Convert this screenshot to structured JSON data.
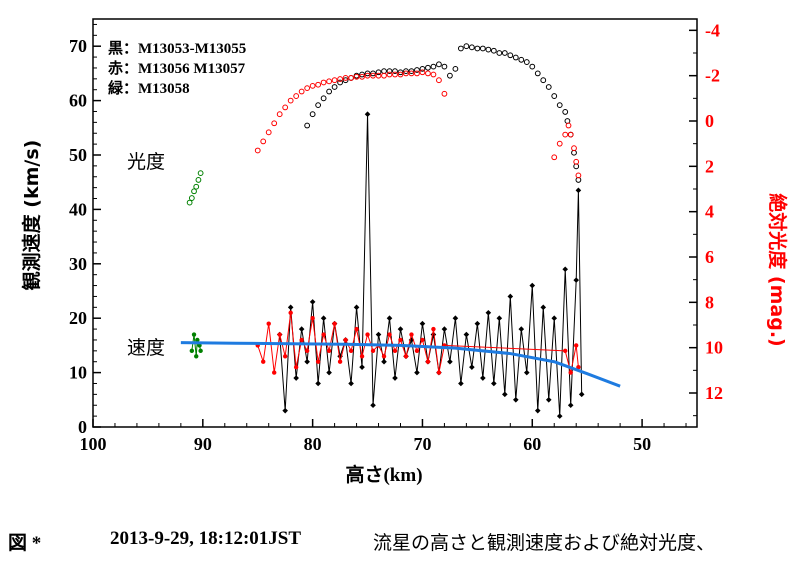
{
  "chart_data": {
    "type": "scatter",
    "xlabel": "高さ(km)",
    "ylabel_left": "観測速度 (km/s)",
    "ylabel_right": "絶対光度 (mag.)",
    "xlim": [
      100,
      45
    ],
    "ylim_left": [
      0,
      75
    ],
    "ylim_right": [
      13.5,
      -4.5
    ],
    "x_ticks": [
      100,
      90,
      80,
      70,
      60,
      50
    ],
    "y_left_ticks": [
      0,
      10,
      20,
      30,
      40,
      50,
      60,
      70
    ],
    "y_right_ticks": [
      -4,
      -2,
      0,
      2,
      4,
      6,
      8,
      10,
      12
    ],
    "legend": [
      {
        "label": "黒：M13053-M13055",
        "color": "#000000"
      },
      {
        "label": "赤：M13056 M13057",
        "color": "#ff0000"
      },
      {
        "label": "緑：M13058",
        "color": "#008000"
      }
    ],
    "annotations": [
      {
        "text": "光度",
        "x": 97,
        "y": 50
      },
      {
        "text": "速度",
        "x": 97,
        "y": 14
      }
    ],
    "series": [
      {
        "name": "光度 黒 (M13053-M13055)",
        "axis": "right",
        "color": "#000000",
        "marker": "open-circle",
        "points": [
          [
            80.5,
            0.2
          ],
          [
            80,
            -0.3
          ],
          [
            79.5,
            -0.7
          ],
          [
            79,
            -1.0
          ],
          [
            78.5,
            -1.3
          ],
          [
            78,
            -1.5
          ],
          [
            77.5,
            -1.7
          ],
          [
            77,
            -1.8
          ],
          [
            76.5,
            -1.9
          ],
          [
            76,
            -2.0
          ],
          [
            75.5,
            -2.05
          ],
          [
            75,
            -2.1
          ],
          [
            74.5,
            -2.1
          ],
          [
            74,
            -2.15
          ],
          [
            73.5,
            -2.2
          ],
          [
            73,
            -2.2
          ],
          [
            72.5,
            -2.2
          ],
          [
            72,
            -2.15
          ],
          [
            71.5,
            -2.2
          ],
          [
            71,
            -2.2
          ],
          [
            70.5,
            -2.25
          ],
          [
            70,
            -2.3
          ],
          [
            69.5,
            -2.35
          ],
          [
            69,
            -2.4
          ],
          [
            68.5,
            -2.5
          ],
          [
            68,
            -2.4
          ],
          [
            67.5,
            -2.0
          ],
          [
            67,
            -2.3
          ],
          [
            66.5,
            -3.2
          ],
          [
            66,
            -3.3
          ],
          [
            65.5,
            -3.25
          ],
          [
            65,
            -3.2
          ],
          [
            64.5,
            -3.2
          ],
          [
            64,
            -3.15
          ],
          [
            63.5,
            -3.1
          ],
          [
            63,
            -3.0
          ],
          [
            62.5,
            -3.0
          ],
          [
            62,
            -2.9
          ],
          [
            61.5,
            -2.8
          ],
          [
            61,
            -2.7
          ],
          [
            60.5,
            -2.6
          ],
          [
            60,
            -2.4
          ],
          [
            59.5,
            -2.1
          ],
          [
            59,
            -1.8
          ],
          [
            58.5,
            -1.5
          ],
          [
            58,
            -1.1
          ],
          [
            57.5,
            -0.7
          ],
          [
            57,
            -0.4
          ],
          [
            56.8,
            0.0
          ],
          [
            56.5,
            0.6
          ],
          [
            56.2,
            1.4
          ],
          [
            56,
            2.0
          ],
          [
            55.8,
            2.6
          ]
        ]
      },
      {
        "name": "光度 赤 (M13056 M13057)",
        "axis": "right",
        "color": "#ff0000",
        "marker": "open-circle",
        "points": [
          [
            85,
            1.3
          ],
          [
            84.5,
            0.9
          ],
          [
            84,
            0.5
          ],
          [
            83.5,
            0.1
          ],
          [
            83,
            -0.3
          ],
          [
            82.5,
            -0.6
          ],
          [
            82,
            -0.9
          ],
          [
            81.5,
            -1.1
          ],
          [
            81,
            -1.3
          ],
          [
            80.5,
            -1.45
          ],
          [
            80,
            -1.55
          ],
          [
            79.5,
            -1.6
          ],
          [
            79,
            -1.7
          ],
          [
            78.5,
            -1.75
          ],
          [
            78,
            -1.8
          ],
          [
            77.5,
            -1.85
          ],
          [
            77,
            -1.9
          ],
          [
            76.5,
            -1.9
          ],
          [
            76,
            -1.95
          ],
          [
            75.5,
            -1.95
          ],
          [
            75,
            -2.0
          ],
          [
            74.5,
            -2.0
          ],
          [
            74,
            -2.0
          ],
          [
            73.5,
            -2.0
          ],
          [
            73,
            -2.05
          ],
          [
            72.5,
            -2.05
          ],
          [
            72,
            -2.05
          ],
          [
            71.5,
            -2.1
          ],
          [
            71,
            -2.1
          ],
          [
            70.5,
            -2.1
          ],
          [
            70,
            -2.15
          ],
          [
            69.5,
            -2.1
          ],
          [
            69,
            -2.05
          ],
          [
            68.5,
            -1.8
          ],
          [
            68,
            -1.2
          ],
          [
            58,
            1.6
          ],
          [
            57.5,
            1.0
          ],
          [
            57,
            0.6
          ],
          [
            56.7,
            0.2
          ],
          [
            56.5,
            0.6
          ],
          [
            56.2,
            1.2
          ],
          [
            56,
            1.8
          ],
          [
            55.8,
            2.4
          ]
        ]
      },
      {
        "name": "光度 緑 (M13058)",
        "axis": "right",
        "color": "#008000",
        "marker": "open-circle",
        "points": [
          [
            91.2,
            3.6
          ],
          [
            91,
            3.4
          ],
          [
            90.8,
            3.1
          ],
          [
            90.6,
            2.9
          ],
          [
            90.4,
            2.6
          ],
          [
            90.2,
            2.3
          ]
        ]
      },
      {
        "name": "速度 黒 (M13053-M13055)",
        "axis": "left",
        "color": "#000000",
        "marker": "filled-diamond",
        "points": [
          [
            83,
            17
          ],
          [
            82.5,
            3
          ],
          [
            82,
            22
          ],
          [
            81.5,
            9
          ],
          [
            81,
            18
          ],
          [
            80.5,
            12
          ],
          [
            80,
            23
          ],
          [
            79.5,
            8
          ],
          [
            79,
            20
          ],
          [
            78.5,
            10
          ],
          [
            78,
            19
          ],
          [
            77.5,
            13
          ],
          [
            77,
            16
          ],
          [
            76.5,
            8
          ],
          [
            76,
            22
          ],
          [
            75.5,
            11
          ],
          [
            75,
            57.5
          ],
          [
            74.5,
            4
          ],
          [
            74,
            17
          ],
          [
            73.5,
            12
          ],
          [
            73,
            20
          ],
          [
            72.5,
            9
          ],
          [
            72,
            18
          ],
          [
            71.5,
            13
          ],
          [
            71,
            16
          ],
          [
            70.5,
            10
          ],
          [
            70,
            19
          ],
          [
            69.5,
            12
          ],
          [
            69,
            17
          ],
          [
            68.5,
            10
          ],
          [
            68,
            18
          ],
          [
            67.5,
            12
          ],
          [
            67,
            20
          ],
          [
            66.5,
            8
          ],
          [
            66,
            17
          ],
          [
            65.5,
            11
          ],
          [
            65,
            19
          ],
          [
            64.5,
            9
          ],
          [
            64,
            21
          ],
          [
            63.5,
            8
          ],
          [
            63,
            20
          ],
          [
            62.5,
            6
          ],
          [
            62,
            24
          ],
          [
            61.5,
            5
          ],
          [
            61,
            18
          ],
          [
            60.5,
            10
          ],
          [
            60,
            26
          ],
          [
            59.5,
            3
          ],
          [
            59,
            22
          ],
          [
            58.5,
            5
          ],
          [
            58,
            20
          ],
          [
            57.5,
            2
          ],
          [
            57,
            29
          ],
          [
            56.5,
            4
          ],
          [
            56,
            27
          ],
          [
            55.8,
            43.5
          ],
          [
            55.5,
            6
          ]
        ]
      },
      {
        "name": "速度 赤 (M13056 M13057)",
        "axis": "left",
        "color": "#ff0000",
        "marker": "filled-dot",
        "points": [
          [
            85,
            15
          ],
          [
            84.5,
            12
          ],
          [
            84,
            19
          ],
          [
            83.5,
            10
          ],
          [
            83,
            17
          ],
          [
            82.5,
            13
          ],
          [
            82,
            21
          ],
          [
            81.5,
            11
          ],
          [
            81,
            16
          ],
          [
            80.5,
            14
          ],
          [
            80,
            20
          ],
          [
            79.5,
            12
          ],
          [
            79,
            17
          ],
          [
            78.5,
            14
          ],
          [
            78,
            19
          ],
          [
            77.5,
            12
          ],
          [
            77,
            16
          ],
          [
            76.5,
            14
          ],
          [
            76,
            18
          ],
          [
            75.5,
            13
          ],
          [
            75,
            17
          ],
          [
            74.5,
            14
          ],
          [
            74,
            15
          ],
          [
            73.5,
            13
          ],
          [
            73,
            17
          ],
          [
            72.5,
            14
          ],
          [
            72,
            16
          ],
          [
            71.5,
            13
          ],
          [
            71,
            17
          ],
          [
            70.5,
            14
          ],
          [
            70,
            16
          ],
          [
            69.5,
            12
          ],
          [
            69,
            18
          ],
          [
            68.5,
            10
          ],
          [
            68,
            15
          ],
          [
            57,
            14
          ],
          [
            56.5,
            10
          ],
          [
            56,
            15
          ],
          [
            55.8,
            11
          ]
        ]
      },
      {
        "name": "速度 緑 (M13058)",
        "axis": "left",
        "color": "#008000",
        "marker": "filled-dot",
        "points": [
          [
            91,
            14
          ],
          [
            90.8,
            17
          ],
          [
            90.6,
            13
          ],
          [
            90.5,
            16
          ],
          [
            90.3,
            15
          ],
          [
            90.2,
            14
          ]
        ]
      },
      {
        "name": "速度 モデル",
        "axis": "left",
        "color": "#1e7be0",
        "marker": "line",
        "points": [
          [
            92,
            15.5
          ],
          [
            87,
            15.4
          ],
          [
            82,
            15.3
          ],
          [
            77,
            15.2
          ],
          [
            72,
            15.0
          ],
          [
            67,
            14.5
          ],
          [
            62,
            13.5
          ],
          [
            58,
            12
          ],
          [
            55,
            9.8
          ],
          [
            52,
            7.5
          ]
        ]
      }
    ]
  },
  "caption": {
    "label": "図 *",
    "date": "2013-9-29, 18:12:01JST",
    "text": "流星の高さと観測速度および絶対光度、"
  }
}
